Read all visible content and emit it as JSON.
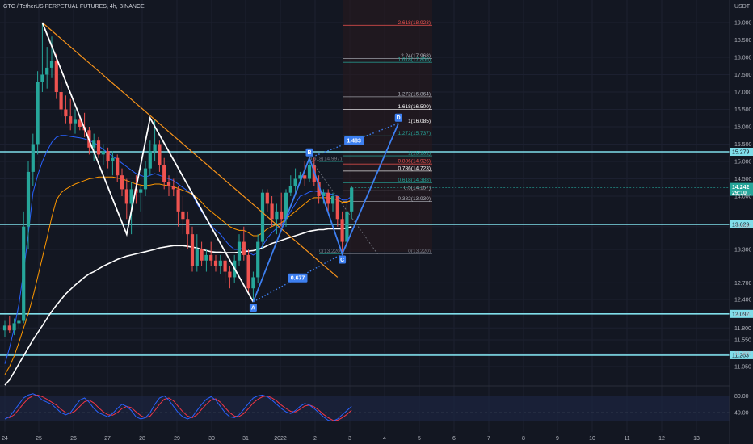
{
  "header": {
    "title": "GTC / TetherUS PERPETUAL FUTURES, 4h, BINANCE",
    "currency": "USDT"
  },
  "colors": {
    "background": "#131722",
    "bull": "#26a69a",
    "bear": "#ef5350",
    "level_line": "#80deea",
    "harmonic": "#ffffff",
    "abcd": "#3d7ff0",
    "trendline": "#f7931a",
    "ema_blue": "#2962ff",
    "ema_orange": "#ff9800",
    "ema_white": "#ffffff",
    "stoch_k": "#2962ff",
    "stoch_d": "#f23645"
  },
  "chart_data": {
    "type": "candlestick",
    "title": "GTC / TetherUS PERPETUAL FUTURES, 4h, BINANCE",
    "currency": "USDT",
    "x_ticks": [
      "24",
      "25",
      "26",
      "27",
      "28",
      "29",
      "30",
      "31",
      "2022",
      "2",
      "3",
      "4",
      "5",
      "6",
      "7",
      "8",
      "9",
      "10",
      "11",
      "12",
      "13"
    ],
    "y_ticks": [
      "19.000",
      "18.500",
      "18.000",
      "17.500",
      "17.000",
      "16.500",
      "16.000",
      "15.500",
      "15.000",
      "14.500",
      "14.000",
      "13.600",
      "13.300",
      "12.700",
      "12.400",
      "12.100",
      "11.800",
      "11.550",
      "11.300",
      "11.050"
    ],
    "y_range": [
      10.85,
      19.35
    ],
    "grid": true,
    "candles": [
      {
        "o": 11.75,
        "h": 11.95,
        "l": 11.6,
        "c": 11.85
      },
      {
        "o": 11.85,
        "h": 12.05,
        "l": 11.7,
        "c": 11.75
      },
      {
        "o": 11.75,
        "h": 12.0,
        "l": 11.65,
        "c": 11.9
      },
      {
        "o": 11.9,
        "h": 12.2,
        "l": 11.8,
        "c": 11.95
      },
      {
        "o": 11.95,
        "h": 13.8,
        "l": 11.9,
        "c": 13.6
      },
      {
        "o": 13.6,
        "h": 15.0,
        "l": 13.3,
        "c": 14.7
      },
      {
        "o": 14.7,
        "h": 15.8,
        "l": 14.3,
        "c": 15.5
      },
      {
        "o": 15.5,
        "h": 17.6,
        "l": 15.2,
        "c": 17.3
      },
      {
        "o": 17.3,
        "h": 19.0,
        "l": 17.0,
        "c": 17.5
      },
      {
        "o": 17.5,
        "h": 18.3,
        "l": 17.1,
        "c": 17.7
      },
      {
        "o": 17.7,
        "h": 18.6,
        "l": 17.4,
        "c": 17.9
      },
      {
        "o": 17.9,
        "h": 18.1,
        "l": 16.8,
        "c": 17.0
      },
      {
        "o": 17.0,
        "h": 17.3,
        "l": 16.3,
        "c": 16.5
      },
      {
        "o": 16.5,
        "h": 16.9,
        "l": 16.1,
        "c": 16.3
      },
      {
        "o": 16.3,
        "h": 16.8,
        "l": 15.9,
        "c": 16.1
      },
      {
        "o": 16.1,
        "h": 16.5,
        "l": 15.8,
        "c": 16.2
      },
      {
        "o": 16.2,
        "h": 16.3,
        "l": 15.9,
        "c": 16.0
      },
      {
        "o": 16.0,
        "h": 16.4,
        "l": 15.7,
        "c": 15.9
      },
      {
        "o": 15.9,
        "h": 16.0,
        "l": 15.2,
        "c": 15.4
      },
      {
        "o": 15.4,
        "h": 15.8,
        "l": 15.0,
        "c": 15.6
      },
      {
        "o": 15.6,
        "h": 15.7,
        "l": 15.1,
        "c": 15.2
      },
      {
        "o": 15.2,
        "h": 15.5,
        "l": 14.9,
        "c": 15.3
      },
      {
        "o": 15.3,
        "h": 15.4,
        "l": 14.8,
        "c": 15.0
      },
      {
        "o": 15.0,
        "h": 15.3,
        "l": 14.6,
        "c": 15.1
      },
      {
        "o": 15.1,
        "h": 15.2,
        "l": 14.4,
        "c": 14.6
      },
      {
        "o": 14.6,
        "h": 14.8,
        "l": 14.0,
        "c": 14.2
      },
      {
        "o": 14.2,
        "h": 14.5,
        "l": 13.7,
        "c": 13.9
      },
      {
        "o": 13.9,
        "h": 14.4,
        "l": 13.5,
        "c": 14.2
      },
      {
        "o": 14.2,
        "h": 14.6,
        "l": 13.9,
        "c": 14.1
      },
      {
        "o": 14.1,
        "h": 14.3,
        "l": 13.8,
        "c": 14.2
      },
      {
        "o": 14.2,
        "h": 15.0,
        "l": 14.0,
        "c": 14.8
      },
      {
        "o": 14.8,
        "h": 15.6,
        "l": 14.6,
        "c": 15.3
      },
      {
        "o": 15.3,
        "h": 16.2,
        "l": 15.0,
        "c": 15.5
      },
      {
        "o": 15.5,
        "h": 15.6,
        "l": 14.7,
        "c": 14.9
      },
      {
        "o": 14.9,
        "h": 15.1,
        "l": 14.2,
        "c": 14.4
      },
      {
        "o": 14.4,
        "h": 14.6,
        "l": 14.0,
        "c": 14.3
      },
      {
        "o": 14.3,
        "h": 14.5,
        "l": 14.0,
        "c": 14.2
      },
      {
        "o": 14.2,
        "h": 14.3,
        "l": 13.6,
        "c": 13.8
      },
      {
        "o": 13.8,
        "h": 14.0,
        "l": 13.5,
        "c": 13.7
      },
      {
        "o": 13.7,
        "h": 13.8,
        "l": 13.3,
        "c": 13.5
      },
      {
        "o": 13.5,
        "h": 13.6,
        "l": 12.9,
        "c": 13.0
      },
      {
        "o": 13.0,
        "h": 13.5,
        "l": 12.9,
        "c": 13.3
      },
      {
        "o": 13.3,
        "h": 13.4,
        "l": 13.0,
        "c": 13.1
      },
      {
        "o": 13.1,
        "h": 13.3,
        "l": 12.9,
        "c": 13.2
      },
      {
        "o": 13.2,
        "h": 13.4,
        "l": 13.0,
        "c": 13.1
      },
      {
        "o": 13.1,
        "h": 13.2,
        "l": 12.9,
        "c": 13.0
      },
      {
        "o": 13.0,
        "h": 13.2,
        "l": 12.85,
        "c": 13.1
      },
      {
        "o": 13.1,
        "h": 13.2,
        "l": 12.7,
        "c": 12.9
      },
      {
        "o": 12.9,
        "h": 13.0,
        "l": 12.6,
        "c": 12.8
      },
      {
        "o": 12.8,
        "h": 13.2,
        "l": 12.7,
        "c": 13.1
      },
      {
        "o": 13.1,
        "h": 13.5,
        "l": 13.0,
        "c": 13.4
      },
      {
        "o": 13.4,
        "h": 13.6,
        "l": 13.1,
        "c": 13.2
      },
      {
        "o": 13.2,
        "h": 13.3,
        "l": 12.5,
        "c": 12.6
      },
      {
        "o": 12.6,
        "h": 12.9,
        "l": 12.35,
        "c": 12.8
      },
      {
        "o": 12.8,
        "h": 13.5,
        "l": 12.7,
        "c": 13.4
      },
      {
        "o": 13.4,
        "h": 14.2,
        "l": 13.3,
        "c": 14.1
      },
      {
        "o": 14.1,
        "h": 14.2,
        "l": 13.8,
        "c": 13.9
      },
      {
        "o": 13.9,
        "h": 14.0,
        "l": 13.6,
        "c": 13.7
      },
      {
        "o": 13.7,
        "h": 13.9,
        "l": 13.5,
        "c": 13.8
      },
      {
        "o": 13.8,
        "h": 14.1,
        "l": 13.6,
        "c": 13.7
      },
      {
        "o": 13.7,
        "h": 14.2,
        "l": 13.6,
        "c": 14.1
      },
      {
        "o": 14.1,
        "h": 14.6,
        "l": 14.0,
        "c": 14.3
      },
      {
        "o": 14.3,
        "h": 14.8,
        "l": 14.1,
        "c": 14.5
      },
      {
        "o": 14.5,
        "h": 14.7,
        "l": 14.4,
        "c": 14.6
      },
      {
        "o": 14.6,
        "h": 15.0,
        "l": 14.3,
        "c": 14.5
      },
      {
        "o": 14.5,
        "h": 15.1,
        "l": 14.4,
        "c": 14.9
      },
      {
        "o": 14.9,
        "h": 15.1,
        "l": 14.3,
        "c": 14.4
      },
      {
        "o": 14.4,
        "h": 14.6,
        "l": 13.9,
        "c": 14.0
      },
      {
        "o": 14.0,
        "h": 14.2,
        "l": 13.9,
        "c": 14.1
      },
      {
        "o": 14.1,
        "h": 14.2,
        "l": 13.8,
        "c": 13.9
      },
      {
        "o": 13.9,
        "h": 14.1,
        "l": 13.8,
        "c": 14.0
      },
      {
        "o": 14.0,
        "h": 14.0,
        "l": 13.6,
        "c": 13.7
      },
      {
        "o": 13.7,
        "h": 13.8,
        "l": 13.2,
        "c": 13.4
      },
      {
        "o": 13.4,
        "h": 13.9,
        "l": 13.3,
        "c": 13.8
      },
      {
        "o": 13.8,
        "h": 14.3,
        "l": 13.7,
        "c": 14.242
      }
    ],
    "moving_averages": [
      {
        "values": [
          11.1,
          11.4,
          11.8,
          12.3,
          12.9,
          13.5,
          14.1,
          14.6,
          15.0,
          15.3,
          15.55,
          15.7,
          15.75,
          15.75,
          15.72,
          15.7,
          15.68,
          15.65,
          15.6,
          15.55,
          15.45,
          15.35,
          15.25,
          15.15,
          15.05,
          14.95,
          14.85,
          14.75,
          14.65,
          14.6,
          14.55,
          14.6,
          14.65,
          14.6,
          14.55,
          14.5,
          14.45,
          14.35,
          14.25,
          14.15,
          14.05,
          13.9,
          13.8,
          13.7,
          13.62,
          13.55,
          13.5,
          13.42,
          13.35,
          13.3,
          13.3,
          13.32,
          13.25,
          13.2,
          13.25,
          13.35,
          13.45,
          13.52,
          13.58,
          13.62,
          13.7,
          13.8,
          13.9,
          14.0,
          14.05,
          14.12,
          14.15,
          14.12,
          14.1,
          14.08,
          14.05,
          14.0,
          13.95,
          13.95,
          14.0
        ]
      },
      {
        "values": [
          10.9,
          11.05,
          11.25,
          11.5,
          11.8,
          12.1,
          12.45,
          12.8,
          13.15,
          13.45,
          13.72,
          13.95,
          14.1,
          14.2,
          14.28,
          14.35,
          14.4,
          14.45,
          14.5,
          14.52,
          14.55,
          14.55,
          14.55,
          14.55,
          14.52,
          14.5,
          14.45,
          14.4,
          14.35,
          14.32,
          14.3,
          14.32,
          14.35,
          14.35,
          14.32,
          14.3,
          14.27,
          14.22,
          14.17,
          14.12,
          14.05,
          13.98,
          13.92,
          13.85,
          13.8,
          13.75,
          13.7,
          13.65,
          13.6,
          13.57,
          13.55,
          13.55,
          13.52,
          13.48,
          13.48,
          13.52,
          13.57,
          13.6,
          13.63,
          13.65,
          13.7,
          13.75,
          13.8,
          13.85,
          13.9,
          13.95,
          13.98,
          13.98,
          13.98,
          13.98,
          13.97,
          13.95,
          13.92,
          13.92,
          13.95
        ]
      },
      {
        "values": [
          10.7,
          10.8,
          10.95,
          11.1,
          11.25,
          11.4,
          11.55,
          11.7,
          11.85,
          12.0,
          12.15,
          12.28,
          12.4,
          12.5,
          12.58,
          12.66,
          12.73,
          12.8,
          12.86,
          12.9,
          12.95,
          13.0,
          13.04,
          13.08,
          13.12,
          13.15,
          13.18,
          13.2,
          13.22,
          13.24,
          13.26,
          13.28,
          13.3,
          13.32,
          13.33,
          13.34,
          13.35,
          13.35,
          13.35,
          13.34,
          13.33,
          13.32,
          13.3,
          13.28,
          13.26,
          13.25,
          13.25,
          13.24,
          13.24,
          13.24,
          13.25,
          13.26,
          13.27,
          13.28,
          13.3,
          13.32,
          13.35,
          13.38,
          13.4,
          13.42,
          13.44,
          13.46,
          13.48,
          13.5,
          13.52,
          13.54,
          13.55,
          13.56,
          13.56,
          13.57,
          13.57,
          13.57,
          13.57,
          13.58,
          13.6
        ]
      }
    ],
    "horizontal_levels": [
      {
        "price": 15.279,
        "label": "15.279"
      },
      {
        "price": 13.629,
        "label": "13.629"
      },
      {
        "price": 12.097,
        "label": "12.097"
      },
      {
        "price": 11.263,
        "label": "11.263"
      }
    ],
    "current_price": {
      "value": "14.242",
      "countdown": "29:10"
    },
    "fib_retracement": [
      {
        "label": "0.618(14.997)",
        "price": 14.997
      },
      {
        "label": "0(13.220)",
        "price": 13.22
      }
    ],
    "fib_extension": [
      {
        "label": "2.618(18.923)",
        "price": 18.923,
        "color": "#ef5350"
      },
      {
        "label": "2.24(17.968)",
        "price": 17.968,
        "color": "#b2b5be"
      },
      {
        "label": "1.618(17.856)",
        "price": 17.856,
        "color": "#26a69a"
      },
      {
        "label": "1.272(16.864)",
        "price": 16.864,
        "color": "#b2b5be"
      },
      {
        "label": "1.618(16.500)",
        "price": 16.5,
        "color": "#ffffff"
      },
      {
        "label": "1(16.085)",
        "price": 16.085,
        "color": "#ffffff"
      },
      {
        "label": "1.272(15.737)",
        "price": 15.737,
        "color": "#26a69a"
      },
      {
        "label": "1(15.161)",
        "price": 15.161,
        "color": "#26a69a"
      },
      {
        "label": "0.886(14.926)",
        "price": 14.926,
        "color": "#ef5350"
      },
      {
        "label": "0.786(14.723)",
        "price": 14.723,
        "color": "#ffffff"
      },
      {
        "label": "0.618(14.388)",
        "price": 14.388,
        "color": "#26a69a"
      },
      {
        "label": "0.5(14.157)",
        "price": 14.157,
        "color": "#b2b5be"
      },
      {
        "label": "0.382(13.930)",
        "price": 13.93,
        "color": "#b2b5be"
      },
      {
        "label": "0(13.220)",
        "price": 13.22,
        "color": "#787b86"
      }
    ],
    "abcd_pattern": {
      "points": [
        {
          "name": "A",
          "bar": 53,
          "price": 12.35
        },
        {
          "name": "B",
          "bar": 65,
          "price": 15.1
        },
        {
          "name": "C",
          "bar": 72,
          "price": 13.22
        },
        {
          "name": "D",
          "bar": 84,
          "price": 16.1
        }
      ],
      "ratios": [
        "0.677",
        "1.483"
      ]
    },
    "harmonic_pattern": {
      "points": [
        {
          "bar": 8,
          "price": 19.0
        },
        {
          "bar": 26,
          "price": 13.5
        },
        {
          "bar": 31,
          "price": 16.25
        },
        {
          "bar": 53,
          "price": 12.35
        }
      ]
    },
    "trendline": {
      "from": {
        "bar": 8,
        "price": 19.0
      },
      "to": {
        "bar": 71,
        "price": 12.8
      }
    },
    "stochastic": {
      "k": [
        25,
        30,
        45,
        60,
        75,
        82,
        85,
        80,
        70,
        65,
        60,
        50,
        40,
        35,
        40,
        55,
        70,
        75,
        65,
        50,
        40,
        35,
        30,
        38,
        50,
        60,
        55,
        45,
        30,
        25,
        28,
        40,
        60,
        75,
        80,
        70,
        55,
        40,
        30,
        25,
        30,
        45,
        60,
        72,
        78,
        70,
        55,
        40,
        30,
        28,
        35,
        48,
        62,
        75,
        80,
        82,
        78,
        70,
        60,
        50,
        42,
        38,
        45,
        55,
        62,
        58,
        50,
        40,
        30,
        22,
        20,
        25,
        35,
        45,
        55
      ],
      "d": [
        30,
        28,
        35,
        48,
        62,
        74,
        80,
        82,
        78,
        72,
        65,
        58,
        48,
        40,
        38,
        44,
        55,
        66,
        70,
        63,
        52,
        42,
        35,
        34,
        40,
        50,
        55,
        52,
        42,
        33,
        28,
        32,
        45,
        60,
        72,
        75,
        68,
        55,
        42,
        32,
        28,
        35,
        48,
        60,
        70,
        73,
        65,
        52,
        40,
        32,
        31,
        38,
        50,
        63,
        72,
        78,
        80,
        75,
        68,
        58,
        50,
        43,
        42,
        48,
        56,
        58,
        54,
        46,
        36,
        28,
        22,
        22,
        28,
        36,
        46
      ],
      "levels": [
        80,
        40,
        20
      ],
      "axis_ticks": [
        "80.00",
        "40.00"
      ]
    }
  }
}
